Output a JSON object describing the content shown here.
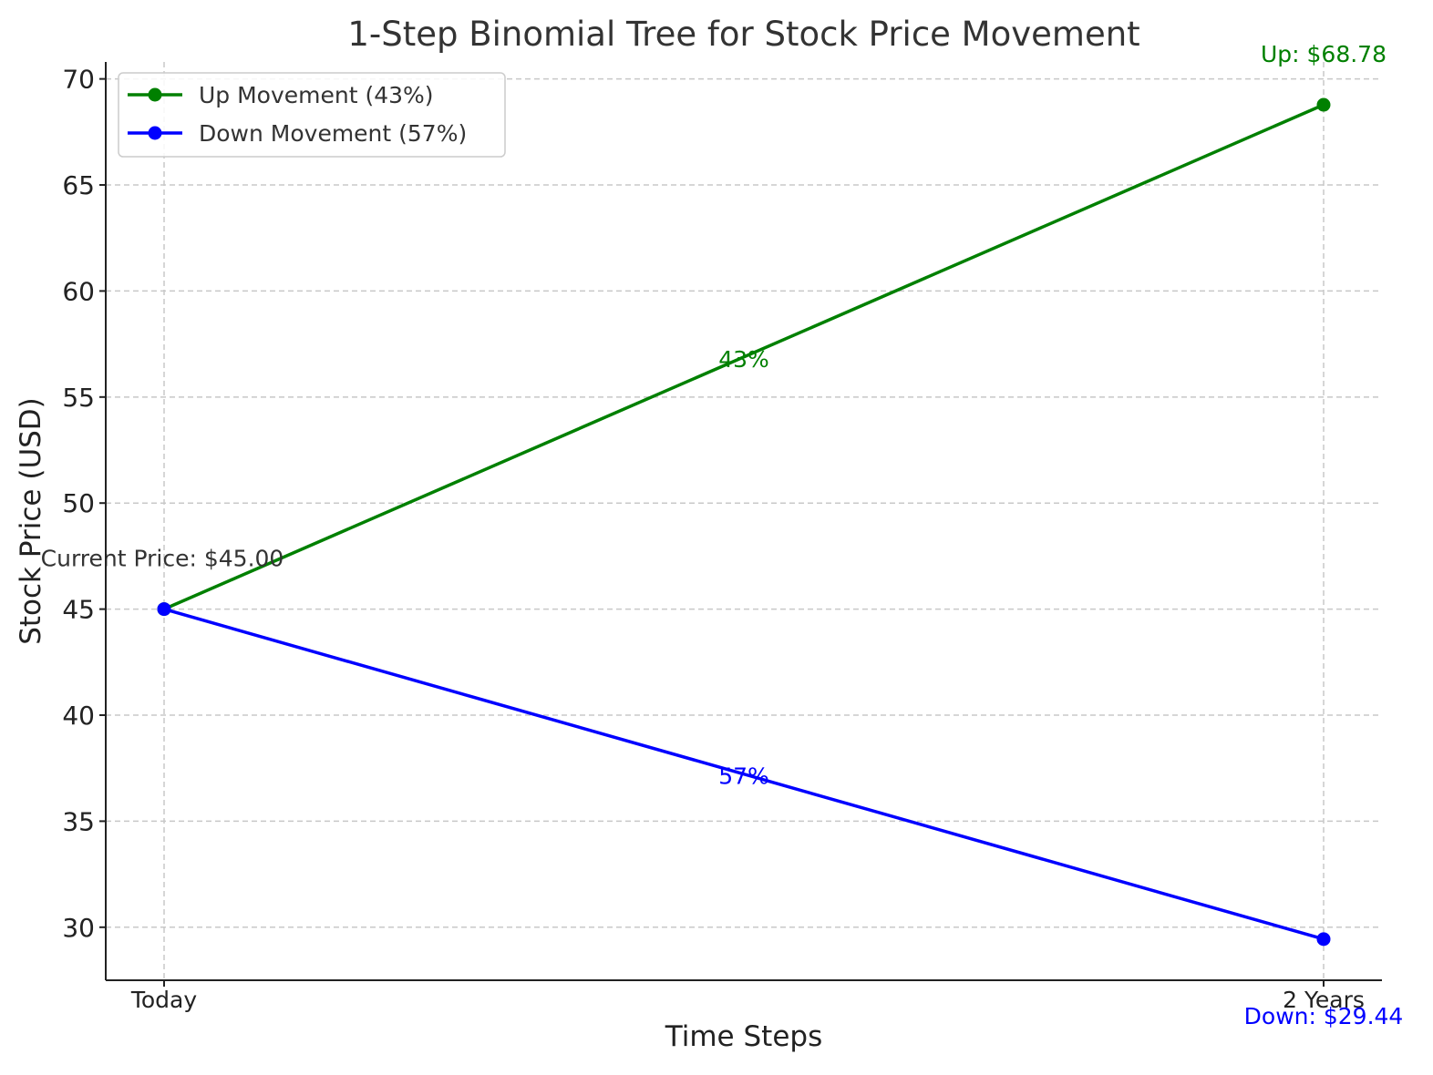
{
  "chart_data": {
    "type": "line",
    "title": "1-Step Binomial Tree for Stock Price Movement",
    "xlabel": "Time Steps",
    "ylabel": "Stock Price (USD)",
    "categories": [
      "Today",
      "2 Years"
    ],
    "ylim": [
      27.5,
      70.8
    ],
    "yticks": [
      30,
      35,
      40,
      45,
      50,
      55,
      60,
      65,
      70
    ],
    "grid": true,
    "legend_position": "top-left",
    "series": [
      {
        "name": "Up Movement (43%)",
        "color": "#008000",
        "values": [
          45.0,
          68.78
        ]
      },
      {
        "name": "Down Movement (57%)",
        "color": "#0000ff",
        "values": [
          45.0,
          29.44
        ]
      }
    ],
    "annotations": [
      {
        "id": "current",
        "text": "Current Price: $45.00",
        "x": 0,
        "y": 45.0,
        "color": "#333333"
      },
      {
        "id": "up_end",
        "text": "Up: $68.78",
        "x": 1,
        "y": 68.78,
        "color": "#008000"
      },
      {
        "id": "down_end",
        "text": "Down: $29.44",
        "x": 1,
        "y": 29.44,
        "color": "#0000ff"
      },
      {
        "id": "up_prob",
        "text": "43%",
        "x": 0.5,
        "y": 56.89,
        "color": "#008000"
      },
      {
        "id": "down_prob",
        "text": "57%",
        "x": 0.5,
        "y": 37.22,
        "color": "#0000ff"
      }
    ]
  }
}
